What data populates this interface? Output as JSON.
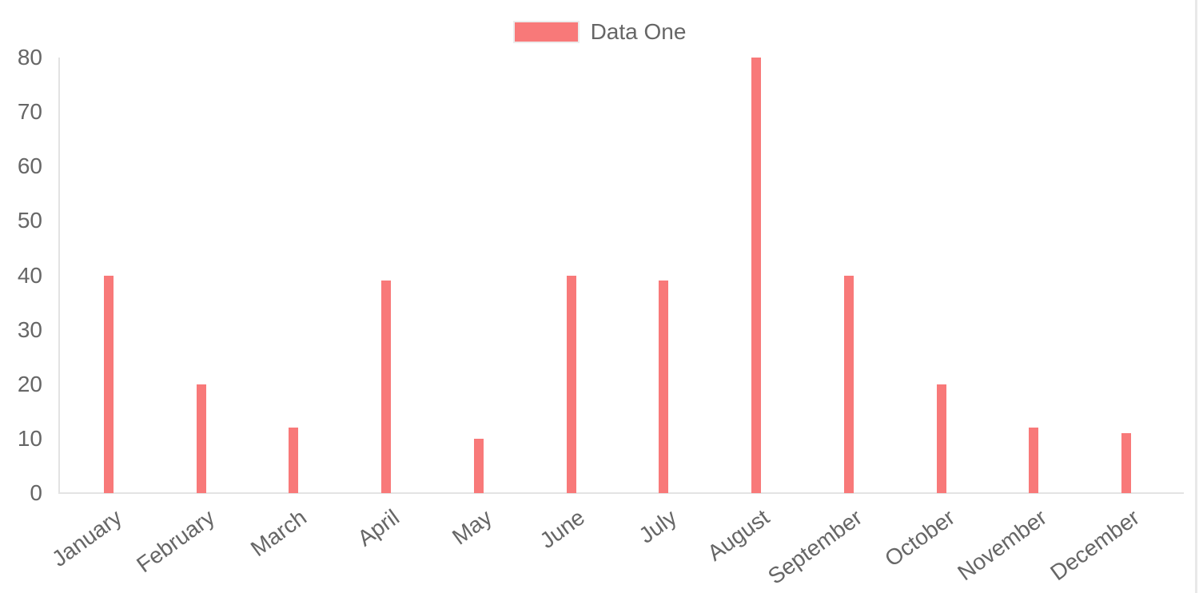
{
  "page": {
    "background": "#ffffff",
    "right_border_color": "#e8e8e8"
  },
  "chart_data": {
    "type": "bar",
    "categories": [
      "January",
      "February",
      "March",
      "April",
      "May",
      "June",
      "July",
      "August",
      "September",
      "October",
      "November",
      "December"
    ],
    "series": [
      {
        "name": "Data One",
        "color": "#f87979",
        "values": [
          40,
          20,
          12,
          39,
          10,
          40,
          39,
          80,
          40,
          20,
          12,
          11
        ]
      }
    ],
    "yticks": [
      0,
      10,
      20,
      30,
      40,
      50,
      60,
      70,
      80
    ],
    "ylim": [
      0,
      80
    ],
    "grid": "off",
    "legend_position": "top",
    "x_label_rotation_deg": -36,
    "colors": {
      "bar": "#f87979",
      "axis_text": "#666666",
      "axis_line": "#e3e3e3"
    }
  }
}
